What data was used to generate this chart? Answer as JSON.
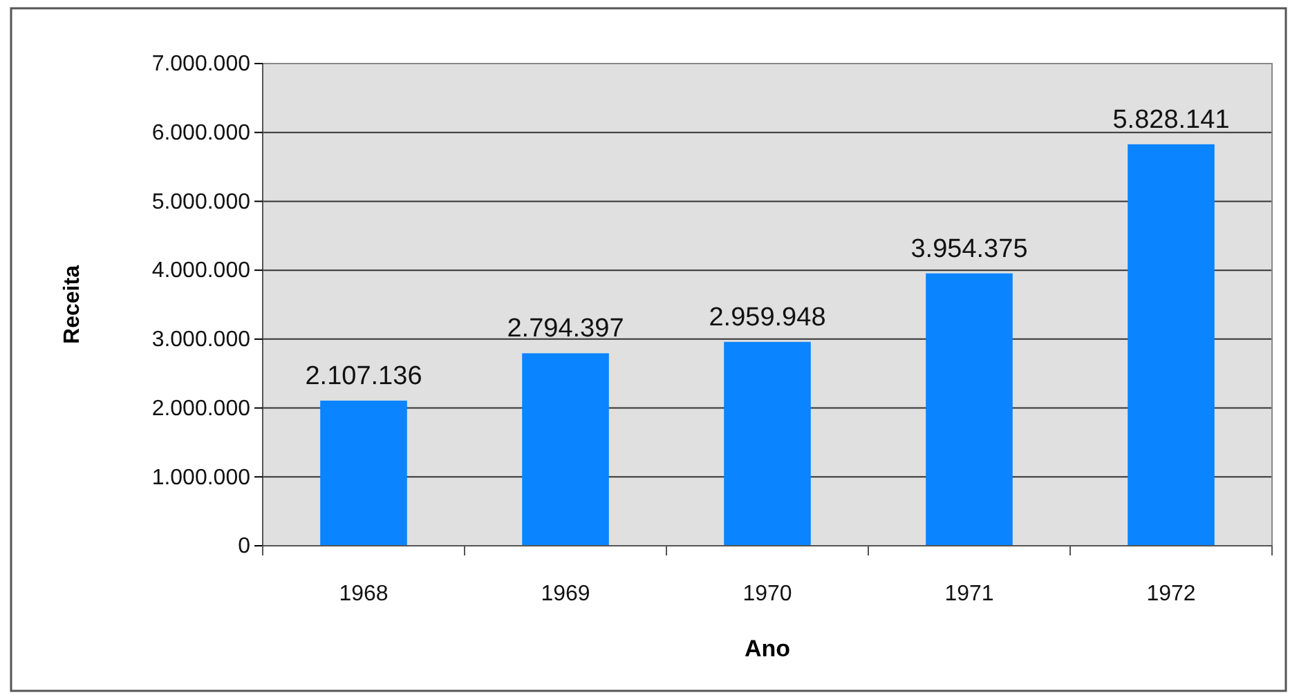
{
  "chart_data": {
    "type": "bar",
    "xlabel": "Ano",
    "ylabel": "Receita",
    "categories": [
      "1968",
      "1969",
      "1970",
      "1971",
      "1972"
    ],
    "values": [
      2107136,
      2794397,
      2959948,
      3954375,
      5828141
    ],
    "value_labels": [
      "2.107.136",
      "2.794.397",
      "2.959.948",
      "3.954.375",
      "5.828.141"
    ],
    "color": "#0a84ff",
    "ylim": [
      0,
      7000000
    ],
    "yticks": [
      {
        "value": 0,
        "label": "0"
      },
      {
        "value": 1000000,
        "label": "1.000.000"
      },
      {
        "value": 2000000,
        "label": "2.000.000"
      },
      {
        "value": 3000000,
        "label": "3.000.000"
      },
      {
        "value": 4000000,
        "label": "4.000.000"
      },
      {
        "value": 5000000,
        "label": "5.000.000"
      },
      {
        "value": 6000000,
        "label": "6.000.000"
      },
      {
        "value": 7000000,
        "label": "7.000.000"
      }
    ],
    "grid": "y"
  }
}
